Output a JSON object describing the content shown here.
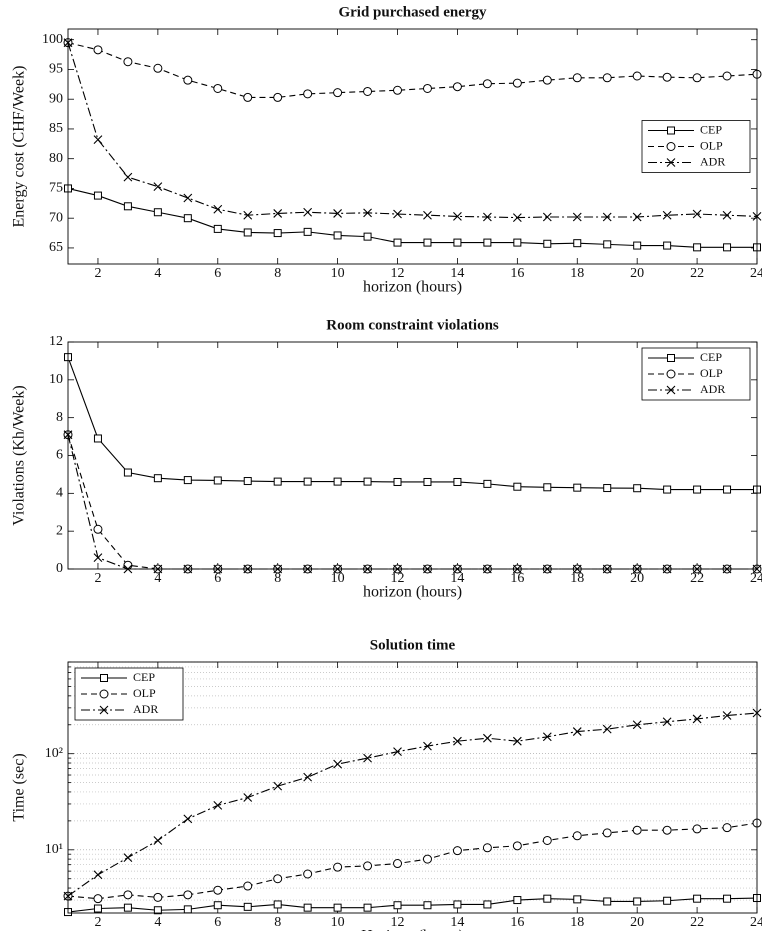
{
  "chart_data": [
    {
      "type": "line",
      "title": "Grid purchased energy",
      "xlabel": "horizon (hours)",
      "ylabel": "Energy cost (CHF/Week)",
      "x": [
        1,
        2,
        3,
        4,
        5,
        6,
        7,
        8,
        9,
        10,
        11,
        12,
        13,
        14,
        15,
        16,
        17,
        18,
        19,
        20,
        21,
        22,
        23,
        24
      ],
      "xlim": [
        1,
        24
      ],
      "xticks": [
        2,
        4,
        6,
        8,
        10,
        12,
        14,
        16,
        18,
        20,
        22,
        24
      ],
      "ylim": [
        62.3,
        101.8
      ],
      "yticks": [
        65,
        70,
        75,
        80,
        85,
        90,
        95,
        100
      ],
      "log_y": false,
      "grid": false,
      "legend": "right",
      "series": [
        {
          "name": "CEP",
          "color": "#000000",
          "marker": "square",
          "linestyle": "solid",
          "values": [
            75,
            73.8,
            72,
            71,
            70,
            68.2,
            67.6,
            67.5,
            67.7,
            67.1,
            66.9,
            65.9,
            65.9,
            65.9,
            65.9,
            65.9,
            65.7,
            65.8,
            65.6,
            65.4,
            65.4,
            65.1,
            65.1,
            65.1
          ]
        },
        {
          "name": "OLP",
          "color": "#000000",
          "marker": "circle",
          "linestyle": "dashed",
          "values": [
            99.5,
            98.3,
            96.3,
            95.2,
            93.2,
            91.8,
            90.3,
            90.3,
            90.9,
            91.1,
            91.3,
            91.5,
            91.8,
            92.1,
            92.6,
            92.7,
            93.2,
            93.6,
            93.6,
            93.9,
            93.7,
            93.6,
            93.9,
            94.2
          ]
        },
        {
          "name": "ADR",
          "color": "#000000",
          "marker": "x",
          "linestyle": "dashdot",
          "values": [
            99.5,
            83.2,
            76.9,
            75.3,
            73.4,
            71.5,
            70.5,
            70.8,
            71,
            70.8,
            70.9,
            70.7,
            70.5,
            70.3,
            70.2,
            70.1,
            70.2,
            70.2,
            70.2,
            70.2,
            70.5,
            70.7,
            70.5,
            70.3
          ]
        }
      ]
    },
    {
      "type": "line",
      "title": "Room constraint violations",
      "xlabel": "horizon (hours)",
      "ylabel": "Violations (Kh/Week)",
      "x": [
        1,
        2,
        3,
        4,
        5,
        6,
        7,
        8,
        9,
        10,
        11,
        12,
        13,
        14,
        15,
        16,
        17,
        18,
        19,
        20,
        21,
        22,
        23,
        24
      ],
      "xlim": [
        1,
        24
      ],
      "xticks": [
        2,
        4,
        6,
        8,
        10,
        12,
        14,
        16,
        18,
        20,
        22,
        24
      ],
      "ylim": [
        0,
        12
      ],
      "yticks": [
        0,
        2,
        4,
        6,
        8,
        10,
        12
      ],
      "log_y": false,
      "grid": false,
      "legend": "upper right",
      "series": [
        {
          "name": "CEP",
          "color": "#000000",
          "marker": "square",
          "linestyle": "solid",
          "values": [
            11.2,
            6.9,
            5.1,
            4.8,
            4.7,
            4.68,
            4.65,
            4.62,
            4.62,
            4.62,
            4.62,
            4.6,
            4.6,
            4.6,
            4.5,
            4.35,
            4.32,
            4.3,
            4.28,
            4.27,
            4.2,
            4.2,
            4.2,
            4.2
          ]
        },
        {
          "name": "OLP",
          "color": "#000000",
          "marker": "circle",
          "linestyle": "dashed",
          "values": [
            7.1,
            2.1,
            0.2,
            0,
            0,
            0,
            0,
            0,
            0,
            0,
            0,
            0,
            0,
            0,
            0,
            0,
            0,
            0,
            0,
            0,
            0,
            0,
            0,
            0
          ]
        },
        {
          "name": "ADR",
          "color": "#000000",
          "marker": "x",
          "linestyle": "dashdot",
          "values": [
            7.1,
            0.6,
            0,
            0,
            0,
            0,
            0,
            0,
            0,
            0,
            0,
            0,
            0,
            0,
            0,
            0,
            0,
            0,
            0,
            0,
            0,
            0,
            0,
            0
          ]
        }
      ]
    },
    {
      "type": "line",
      "title": "Solution time",
      "xlabel": "Horizon (hours)",
      "ylabel": "Time (sec)",
      "x": [
        1,
        2,
        3,
        4,
        5,
        6,
        7,
        8,
        9,
        10,
        11,
        12,
        13,
        14,
        15,
        16,
        17,
        18,
        19,
        20,
        21,
        22,
        23,
        24
      ],
      "xlim": [
        1,
        24
      ],
      "xticks": [
        2,
        4,
        6,
        8,
        10,
        12,
        14,
        16,
        18,
        20,
        22,
        24
      ],
      "ylim": [
        2.2,
        900
      ],
      "yticks": [
        {
          "value": 10,
          "label": "10¹"
        },
        {
          "value": 100,
          "label": "10²"
        }
      ],
      "yminorticks": [
        3,
        4,
        5,
        6,
        7,
        8,
        9,
        20,
        30,
        40,
        50,
        60,
        70,
        80,
        90,
        200,
        300,
        400,
        500,
        600,
        700,
        800,
        900
      ],
      "log_y": true,
      "grid": true,
      "legend": "upper left",
      "series": [
        {
          "name": "CEP",
          "color": "#000000",
          "marker": "square",
          "linestyle": "solid",
          "values": [
            2.25,
            2.45,
            2.5,
            2.35,
            2.4,
            2.65,
            2.55,
            2.7,
            2.5,
            2.5,
            2.5,
            2.65,
            2.65,
            2.7,
            2.7,
            3.0,
            3.1,
            3.05,
            2.9,
            2.9,
            2.95,
            3.1,
            3.1,
            3.15
          ]
        },
        {
          "name": "OLP",
          "color": "#000000",
          "marker": "circle",
          "linestyle": "dashed",
          "values": [
            3.3,
            3.1,
            3.4,
            3.2,
            3.4,
            3.8,
            4.2,
            5,
            5.6,
            6.6,
            6.8,
            7.2,
            8,
            9.8,
            10.5,
            11,
            12.5,
            14,
            15,
            16,
            16,
            16.5,
            17,
            19
          ]
        },
        {
          "name": "ADR",
          "color": "#000000",
          "marker": "x",
          "linestyle": "dashdot",
          "values": [
            3.3,
            5.5,
            8.3,
            12.5,
            21,
            29,
            35,
            46,
            57,
            78,
            90,
            105,
            120,
            135,
            145,
            135,
            150,
            170,
            180,
            200,
            215,
            230,
            250,
            265
          ]
        }
      ]
    }
  ]
}
